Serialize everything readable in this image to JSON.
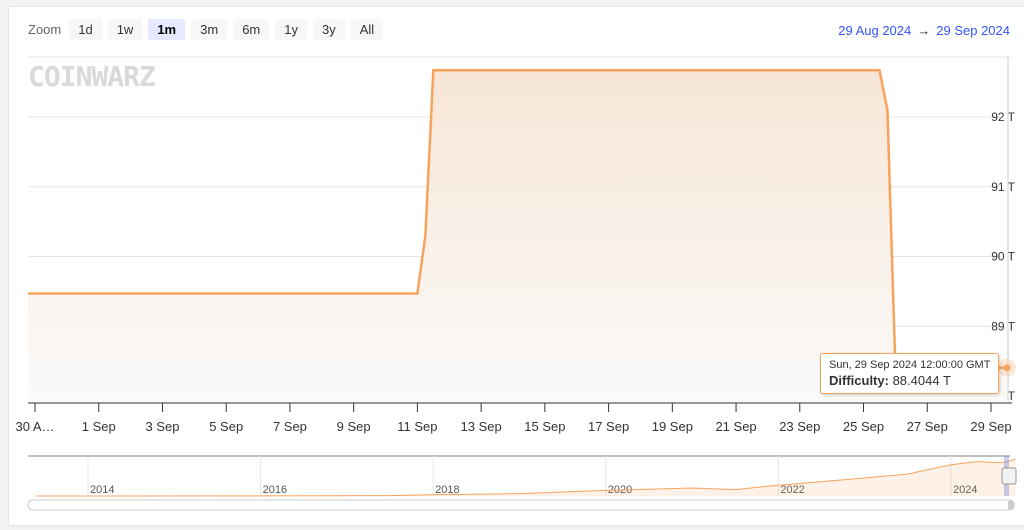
{
  "zoom": {
    "label": "Zoom",
    "buttons": [
      "1d",
      "1w",
      "1m",
      "3m",
      "6m",
      "1y",
      "3y",
      "All"
    ],
    "selected": "1m"
  },
  "range": {
    "from": "29 Aug 2024",
    "arrow": "→",
    "to": "29 Sep 2024"
  },
  "logo": "COINWARZ",
  "tooltip": {
    "date": "Sun, 29 Sep 2024 12:00:00 GMT",
    "series": "Difficulty:",
    "value": "88.4044 T"
  },
  "colors": {
    "line": "#f7a35c",
    "range_text": "#3355ff",
    "selected_button": "#e6e9ff"
  },
  "chart_data": {
    "type": "area",
    "title": "",
    "xlabel": "",
    "ylabel": "",
    "series": [
      {
        "name": "Difficulty",
        "points": [
          [
            "2024-08-29T18:00",
            89.47
          ],
          [
            "2024-09-11T00:00",
            89.47
          ],
          [
            "2024-09-11T06:00",
            90.3
          ],
          [
            "2024-09-11T12:00",
            92.67
          ],
          [
            "2024-09-25T12:00",
            92.67
          ],
          [
            "2024-09-25T18:00",
            92.1
          ],
          [
            "2024-09-26T00:00",
            88.4
          ],
          [
            "2024-09-29T12:00",
            88.4044
          ]
        ]
      }
    ],
    "ylim": [
      87.9,
      92.85
    ],
    "yticks": [
      88,
      89,
      90,
      91,
      92
    ],
    "ytick_labels": [
      "88 T",
      "89 T",
      "90 T",
      "91 T",
      "92 T"
    ],
    "xticks": [
      "2024-08-30",
      "2024-09-01",
      "2024-09-03",
      "2024-09-05",
      "2024-09-07",
      "2024-09-09",
      "2024-09-11",
      "2024-09-13",
      "2024-09-15",
      "2024-09-17",
      "2024-09-19",
      "2024-09-21",
      "2024-09-23",
      "2024-09-25",
      "2024-09-27",
      "2024-09-29"
    ],
    "xtick_labels": [
      "30 A…",
      "1 Sep",
      "3 Sep",
      "5 Sep",
      "7 Sep",
      "9 Sep",
      "11 Sep",
      "13 Sep",
      "15 Sep",
      "17 Sep",
      "19 Sep",
      "21 Sep",
      "23 Sep",
      "25 Sep",
      "27 Sep",
      "29 Sep"
    ],
    "grid": true,
    "navigator": {
      "labels": [
        "2014",
        "2016",
        "2018",
        "2020",
        "2022",
        "2024"
      ],
      "points": [
        [
          2013.4,
          0
        ],
        [
          2016,
          0.2
        ],
        [
          2017.5,
          1
        ],
        [
          2018,
          3
        ],
        [
          2019,
          6
        ],
        [
          2020,
          14
        ],
        [
          2021,
          20
        ],
        [
          2021.5,
          16
        ],
        [
          2022,
          27
        ],
        [
          2023,
          45
        ],
        [
          2023.5,
          55
        ],
        [
          2024,
          78
        ],
        [
          2024.3,
          86
        ],
        [
          2024.6,
          83
        ],
        [
          2024.75,
          92
        ]
      ]
    }
  }
}
